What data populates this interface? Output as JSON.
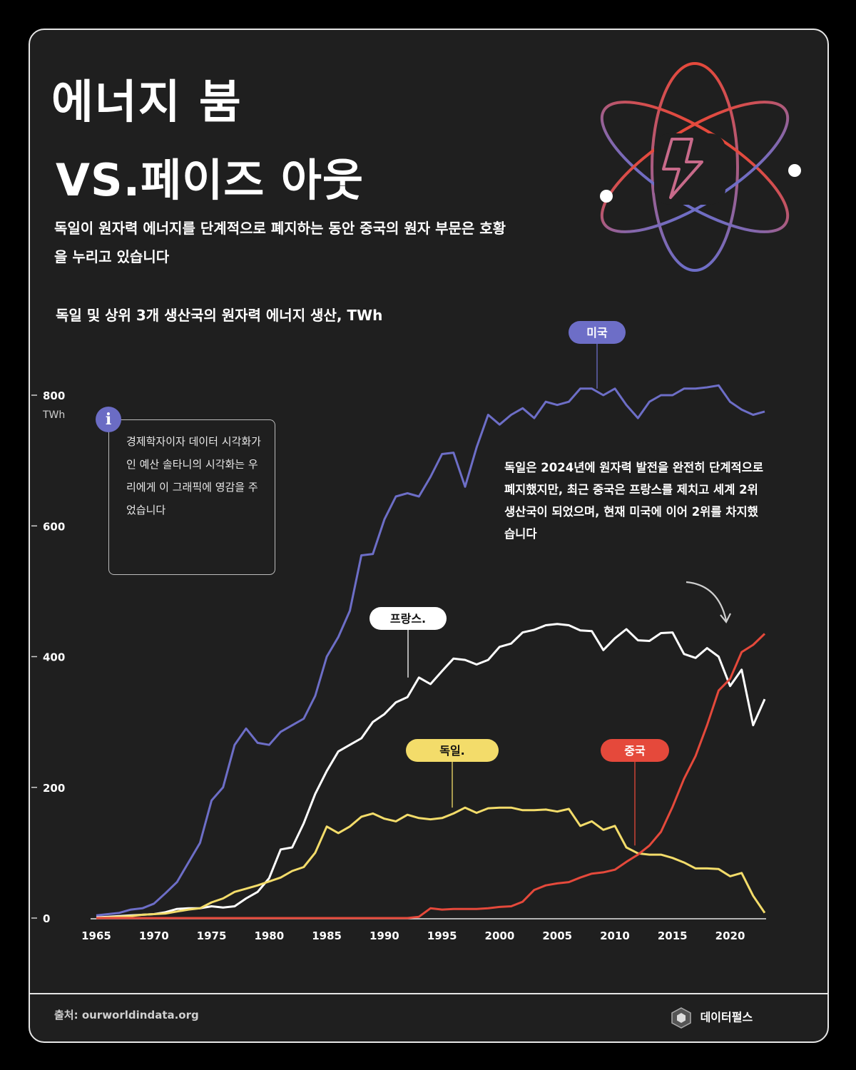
{
  "header": {
    "title_line1": "에너지 붐",
    "title_line2": "VS.페이즈 아웃",
    "subtitle": "독일이 원자력 에너지를 단계적으로 폐지하는 동안 중국의 원자 부문은 호황을 누리고 있습니다"
  },
  "info": {
    "icon": "i",
    "text": "경제학자이자 데이터 시각화가인 예산 솔타니의 시각화는 우리에게 이 그래픽에 영감을 주었습니다"
  },
  "note": "독일은 2024년에 원자력 발전을 완전히 단계적으로 폐지했지만, 최근 중국은 프랑스를 제치고 세계 2위 생산국이 되었으며, 현재 미국에 이어 2위를 차지했습니다",
  "footer": {
    "source": "출처: ourworldindata.org",
    "brand": "데이터펄스"
  },
  "colors": {
    "usa": "#6d6ec7",
    "france": "#ffffff",
    "germany": "#f3dc6a",
    "china": "#e5493b",
    "background": "#1f1f1f"
  },
  "icons": [
    "atom-icon",
    "lightning-icon",
    "info-icon",
    "curved-arrow-icon",
    "brand-logo-icon"
  ],
  "chart_data": {
    "type": "line",
    "title": "독일 및 상위 3개 생산국의 원자력 에너지 생산, TWh",
    "ylabel": "TWh",
    "xlim": [
      1965,
      2023
    ],
    "ylim": [
      0,
      800
    ],
    "x_ticks": [
      1965,
      1970,
      1975,
      1980,
      1985,
      1990,
      1995,
      2000,
      2005,
      2010,
      2015,
      2020
    ],
    "y_ticks": [
      0,
      200,
      400,
      600,
      800
    ],
    "grid": false,
    "x": [
      1965,
      1966,
      1967,
      1968,
      1969,
      1970,
      1971,
      1972,
      1973,
      1974,
      1975,
      1976,
      1977,
      1978,
      1979,
      1980,
      1981,
      1982,
      1983,
      1984,
      1985,
      1986,
      1987,
      1988,
      1989,
      1990,
      1991,
      1992,
      1993,
      1994,
      1995,
      1996,
      1997,
      1998,
      1999,
      2000,
      2001,
      2002,
      2003,
      2004,
      2005,
      2006,
      2007,
      2008,
      2009,
      2010,
      2011,
      2012,
      2013,
      2014,
      2015,
      2016,
      2017,
      2018,
      2019,
      2020,
      2021,
      2022,
      2023
    ],
    "series": [
      {
        "name": "미국",
        "color": "#6d6ec7",
        "values": [
          4,
          6,
          8,
          13,
          15,
          22,
          38,
          55,
          85,
          115,
          180,
          200,
          265,
          290,
          268,
          265,
          285,
          295,
          305,
          340,
          400,
          430,
          470,
          555,
          557,
          610,
          645,
          650,
          645,
          675,
          710,
          712,
          660,
          720,
          770,
          755,
          770,
          780,
          765,
          790,
          785,
          790,
          810,
          810,
          800,
          810,
          785,
          765,
          790,
          800,
          800,
          810,
          810,
          812,
          815,
          790,
          778,
          770,
          775
        ]
      },
      {
        "name": "프랑스.",
        "color": "#ffffff",
        "values": [
          1,
          2,
          3,
          4,
          5,
          6,
          9,
          14,
          15,
          15,
          18,
          16,
          18,
          30,
          40,
          61,
          105,
          108,
          145,
          190,
          225,
          255,
          265,
          275,
          300,
          312,
          330,
          338,
          368,
          358,
          378,
          397,
          395,
          388,
          395,
          415,
          420,
          437,
          441,
          448,
          450,
          448,
          440,
          439,
          410,
          428,
          442,
          425,
          424,
          436,
          437,
          404,
          398,
          413,
          400,
          355,
          380,
          295,
          335
        ]
      },
      {
        "name": "독일.",
        "color": "#f3dc6a",
        "values": [
          0,
          1,
          2,
          3,
          5,
          6,
          7,
          10,
          13,
          15,
          24,
          30,
          40,
          45,
          50,
          56,
          62,
          72,
          78,
          100,
          140,
          130,
          140,
          155,
          160,
          152,
          148,
          158,
          153,
          151,
          153,
          160,
          169,
          161,
          168,
          169,
          169,
          165,
          165,
          166,
          163,
          167,
          141,
          148,
          135,
          141,
          108,
          99,
          97,
          97,
          92,
          85,
          76,
          76,
          75,
          64,
          69,
          34,
          8
        ]
      },
      {
        "name": "중국",
        "color": "#e5493b",
        "values": [
          0,
          0,
          0,
          0,
          0,
          0,
          0,
          0,
          0,
          0,
          0,
          0,
          0,
          0,
          0,
          0,
          0,
          0,
          0,
          0,
          0,
          0,
          0,
          0,
          0,
          0,
          0,
          0,
          2,
          15,
          13,
          14,
          14,
          14,
          15,
          17,
          18,
          25,
          43,
          50,
          53,
          55,
          62,
          68,
          70,
          74,
          86,
          97,
          111,
          132,
          170,
          213,
          248,
          295,
          348,
          366,
          407,
          418,
          435
        ]
      }
    ]
  }
}
